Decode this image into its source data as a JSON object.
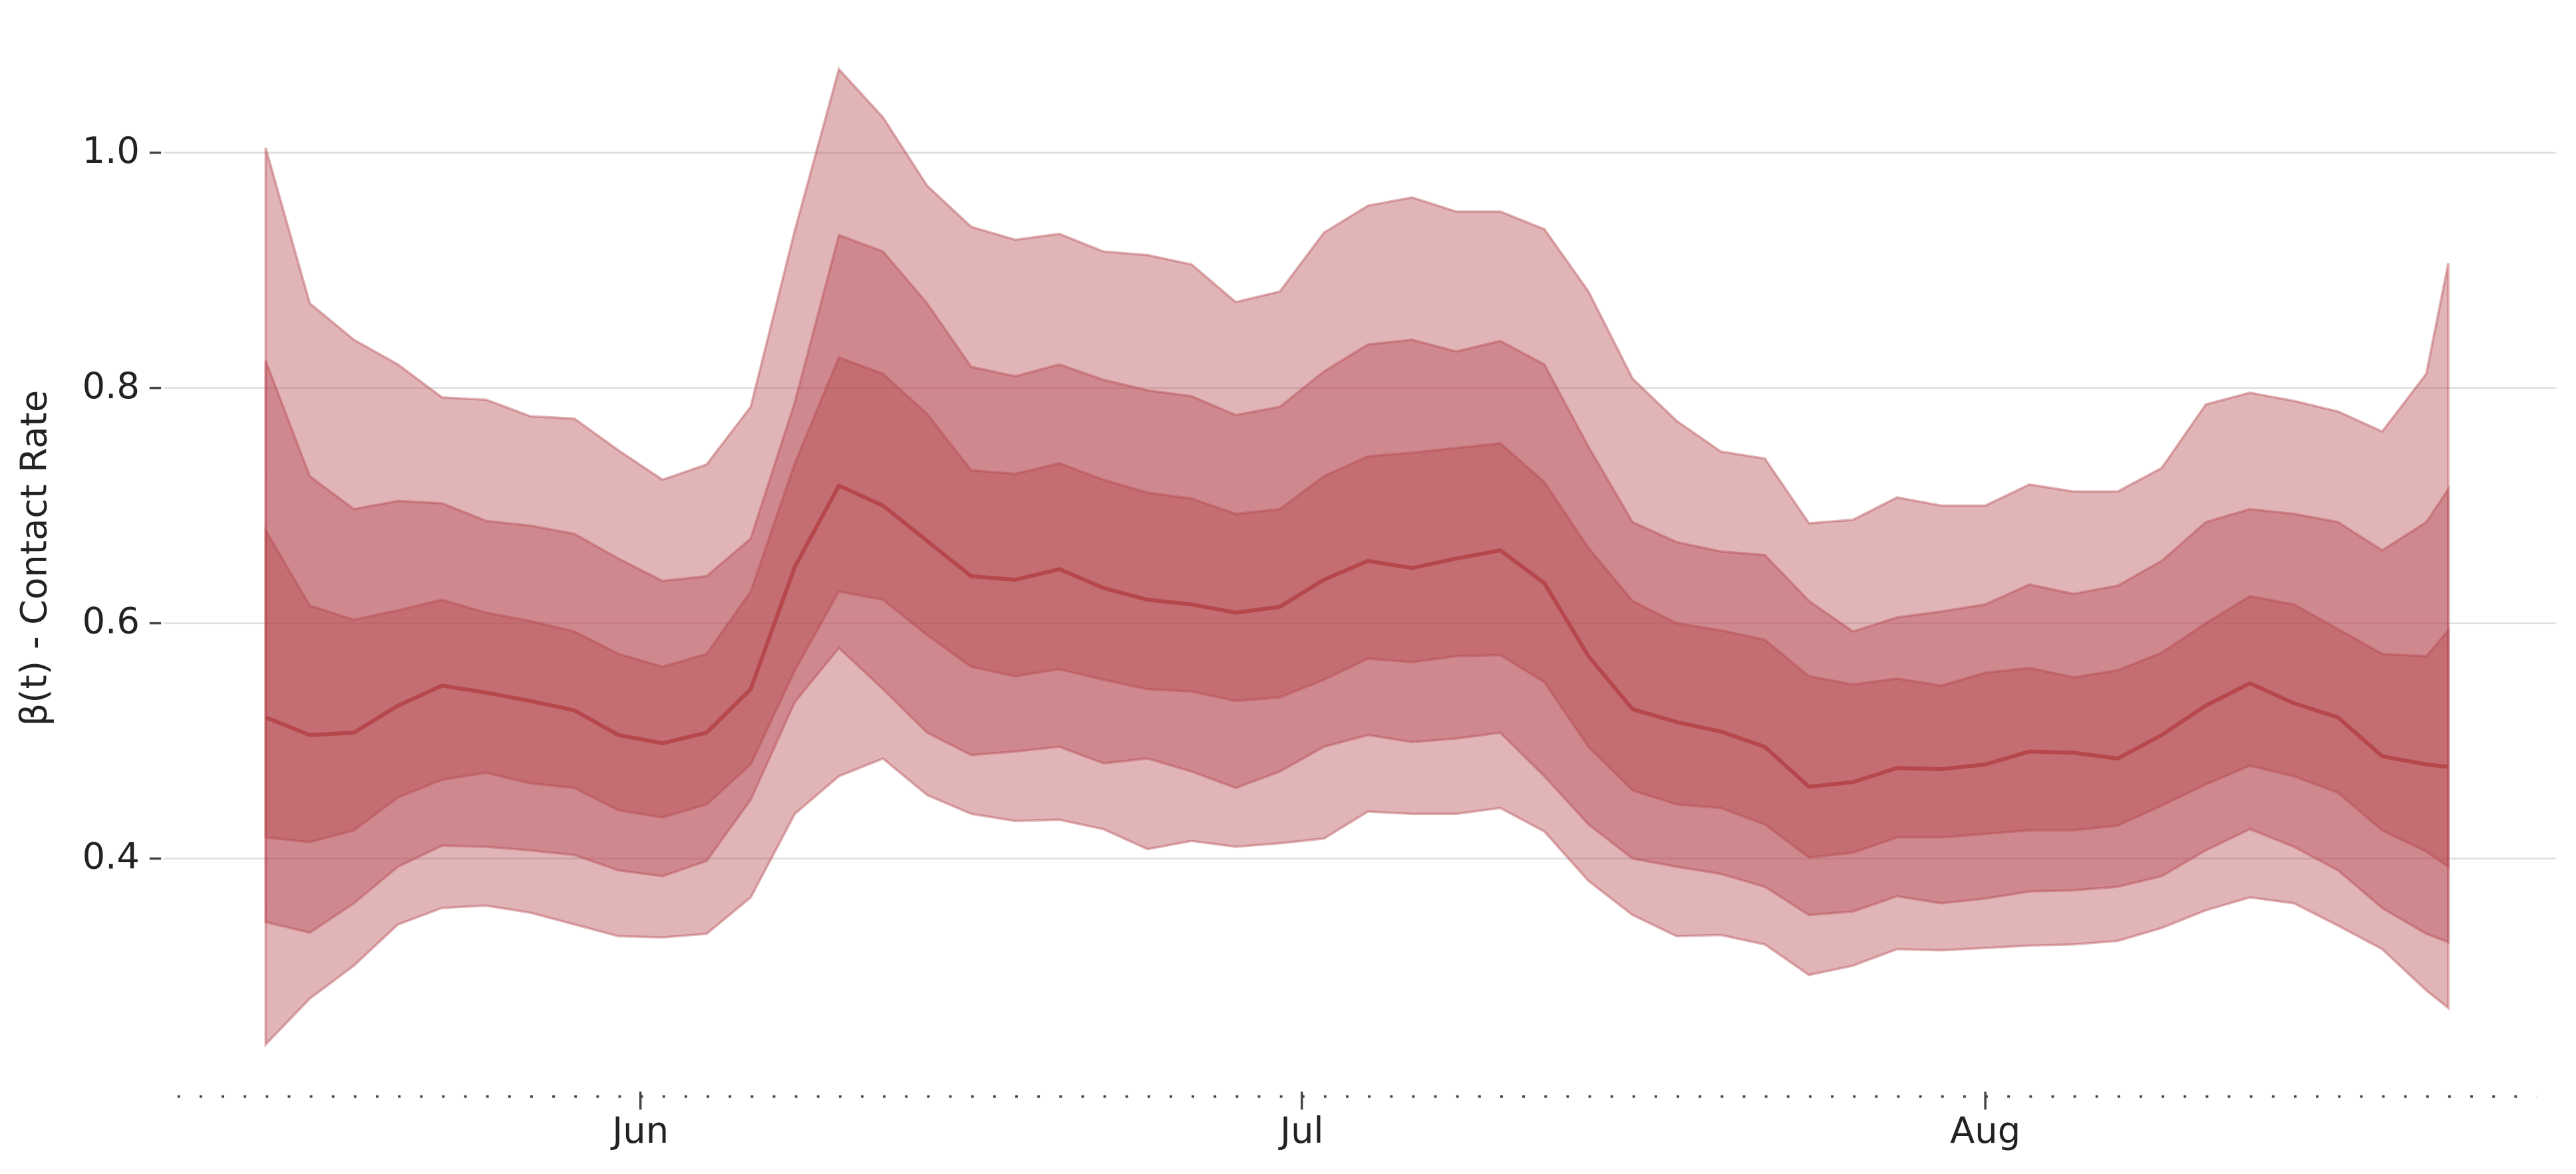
{
  "chart_data": {
    "type": "fan",
    "ylabel": "β(t) - Contact Rate",
    "x": [
      135,
      137,
      139,
      141,
      143,
      145,
      147,
      149,
      151,
      153,
      155,
      157,
      159,
      161,
      163,
      165,
      167,
      169,
      171,
      173,
      175,
      177,
      179,
      181,
      183,
      185,
      187,
      189,
      191,
      193,
      195,
      197,
      199,
      201,
      203,
      205,
      207,
      209,
      211,
      213,
      215,
      217,
      219,
      221,
      223,
      225,
      227,
      229,
      231,
      233,
      234
    ],
    "values": [
      0.52,
      0.505,
      0.507,
      0.53,
      0.547,
      0.541,
      0.534,
      0.526,
      0.505,
      0.498,
      0.507,
      0.544,
      0.648,
      0.717,
      0.7,
      0.67,
      0.64,
      0.637,
      0.646,
      0.63,
      0.62,
      0.616,
      0.609,
      0.614,
      0.637,
      0.653,
      0.647,
      0.655,
      0.662,
      0.634,
      0.572,
      0.527,
      0.516,
      0.508,
      0.495,
      0.461,
      0.465,
      0.477,
      0.476,
      0.48,
      0.491,
      0.49,
      0.485,
      0.505,
      0.53,
      0.549,
      0.532,
      0.52,
      0.487,
      0.48,
      0.478
    ],
    "color": "#b5474d",
    "bands": [
      {
        "upper": [
          1.004,
          0.872,
          0.841,
          0.82,
          0.792,
          0.79,
          0.776,
          0.774,
          0.747,
          0.722,
          0.735,
          0.784,
          0.934,
          1.071,
          1.03,
          0.972,
          0.937,
          0.926,
          0.931,
          0.916,
          0.913,
          0.905,
          0.873,
          0.882,
          0.932,
          0.955,
          0.962,
          0.95,
          0.95,
          0.935,
          0.882,
          0.808,
          0.772,
          0.746,
          0.74,
          0.685,
          0.688,
          0.707,
          0.7,
          0.7,
          0.718,
          0.712,
          0.712,
          0.732,
          0.786,
          0.796,
          0.789,
          0.78,
          0.763,
          0.812,
          0.906
        ],
        "lower": [
          0.242,
          0.281,
          0.309,
          0.344,
          0.358,
          0.36,
          0.354,
          0.344,
          0.334,
          0.333,
          0.336,
          0.367,
          0.438,
          0.47,
          0.485,
          0.454,
          0.438,
          0.432,
          0.433,
          0.425,
          0.408,
          0.415,
          0.41,
          0.413,
          0.417,
          0.44,
          0.438,
          0.438,
          0.443,
          0.423,
          0.381,
          0.352,
          0.334,
          0.335,
          0.327,
          0.301,
          0.309,
          0.323,
          0.322,
          0.324,
          0.326,
          0.327,
          0.33,
          0.341,
          0.356,
          0.367,
          0.362,
          0.343,
          0.323,
          0.288,
          0.273
        ]
      },
      {
        "upper": [
          0.823,
          0.725,
          0.697,
          0.704,
          0.702,
          0.687,
          0.683,
          0.676,
          0.655,
          0.636,
          0.64,
          0.672,
          0.788,
          0.93,
          0.916,
          0.872,
          0.818,
          0.81,
          0.82,
          0.807,
          0.798,
          0.793,
          0.777,
          0.784,
          0.814,
          0.837,
          0.841,
          0.831,
          0.84,
          0.82,
          0.75,
          0.686,
          0.669,
          0.661,
          0.658,
          0.619,
          0.593,
          0.605,
          0.61,
          0.616,
          0.633,
          0.625,
          0.632,
          0.653,
          0.686,
          0.697,
          0.693,
          0.686,
          0.662,
          0.686,
          0.714
        ],
        "lower": [
          0.346,
          0.337,
          0.362,
          0.393,
          0.411,
          0.41,
          0.407,
          0.403,
          0.39,
          0.385,
          0.398,
          0.45,
          0.533,
          0.579,
          0.544,
          0.507,
          0.488,
          0.491,
          0.495,
          0.481,
          0.485,
          0.474,
          0.46,
          0.474,
          0.495,
          0.505,
          0.499,
          0.502,
          0.507,
          0.47,
          0.429,
          0.4,
          0.393,
          0.387,
          0.376,
          0.352,
          0.355,
          0.368,
          0.362,
          0.366,
          0.372,
          0.373,
          0.376,
          0.385,
          0.407,
          0.425,
          0.41,
          0.39,
          0.358,
          0.336,
          0.329
        ]
      },
      {
        "upper": [
          0.679,
          0.615,
          0.603,
          0.611,
          0.62,
          0.609,
          0.602,
          0.593,
          0.574,
          0.563,
          0.574,
          0.627,
          0.736,
          0.826,
          0.812,
          0.778,
          0.73,
          0.727,
          0.736,
          0.722,
          0.711,
          0.706,
          0.693,
          0.697,
          0.725,
          0.742,
          0.745,
          0.749,
          0.753,
          0.72,
          0.664,
          0.619,
          0.6,
          0.594,
          0.586,
          0.555,
          0.548,
          0.553,
          0.547,
          0.558,
          0.562,
          0.554,
          0.56,
          0.575,
          0.6,
          0.623,
          0.616,
          0.595,
          0.574,
          0.572,
          0.594
        ],
        "lower": [
          0.418,
          0.414,
          0.424,
          0.452,
          0.467,
          0.473,
          0.464,
          0.46,
          0.441,
          0.435,
          0.446,
          0.48,
          0.56,
          0.627,
          0.62,
          0.59,
          0.563,
          0.555,
          0.561,
          0.552,
          0.544,
          0.542,
          0.534,
          0.537,
          0.552,
          0.57,
          0.567,
          0.572,
          0.573,
          0.55,
          0.495,
          0.458,
          0.446,
          0.443,
          0.429,
          0.401,
          0.405,
          0.418,
          0.418,
          0.421,
          0.424,
          0.424,
          0.428,
          0.445,
          0.463,
          0.479,
          0.47,
          0.456,
          0.424,
          0.406,
          0.393
        ]
      }
    ],
    "band_color": "#b5474d",
    "band_alpha": 0.4,
    "xlim": [
      131,
      238
    ],
    "xticks": [
      {
        "value": 152,
        "label": "Jun"
      },
      {
        "value": 182,
        "label": "Jul"
      },
      {
        "value": 213,
        "label": "Aug"
      }
    ],
    "ylim": [
      0.21,
      1.11
    ],
    "yticks": [
      0.4,
      0.6,
      0.8,
      {
        "value": 1,
        "label": "1.0"
      }
    ],
    "grid": true
  }
}
